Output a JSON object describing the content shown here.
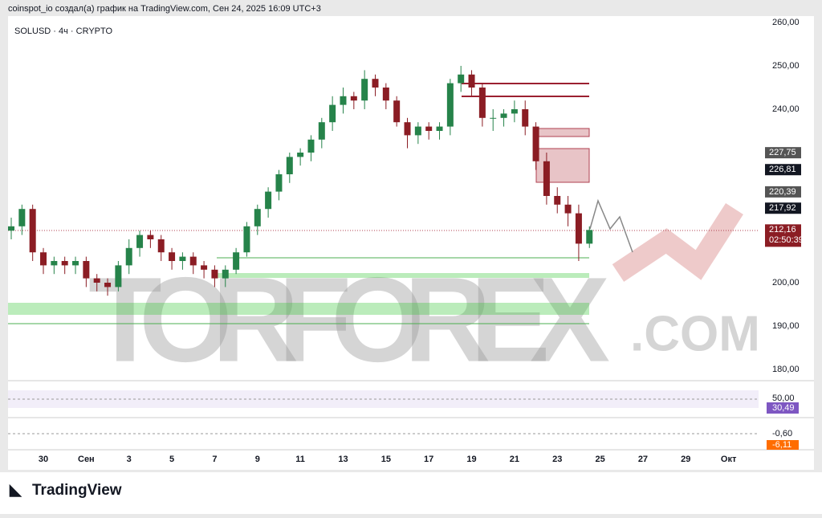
{
  "header": {
    "caption": "coinspot_io создал(а) график на TradingView.com, Сен 24, 2025 16:09 UTC+3",
    "symbol": "SOLUSD · 4ч · CRYPTO",
    "brand": "TradingView"
  },
  "watermark": {
    "main": "TORFOREX",
    "suffix": ".COM"
  },
  "chart_data": {
    "type": "candlestick",
    "open": [
      212,
      213,
      217,
      207,
      204,
      205,
      204,
      205,
      201,
      200,
      199,
      204,
      208,
      211,
      210,
      207,
      205,
      206,
      204,
      203,
      201,
      203,
      207,
      213,
      217,
      221,
      225,
      229,
      230,
      233,
      237,
      241,
      243,
      242,
      247,
      245,
      242,
      237,
      234,
      236,
      235,
      236,
      246,
      248,
      245,
      238,
      238,
      239,
      240,
      236,
      228,
      220,
      218,
      216,
      209
    ],
    "high": [
      215,
      218,
      218,
      208,
      206,
      206,
      206,
      206,
      202,
      201,
      205,
      210,
      212,
      212,
      211,
      208,
      207,
      207,
      205,
      204,
      204,
      208,
      214,
      218,
      222,
      226,
      230,
      231,
      234,
      238,
      243,
      245,
      244,
      249,
      248,
      246,
      243,
      238,
      237,
      237,
      237,
      247,
      250,
      249,
      246,
      240,
      240,
      242,
      242,
      237,
      230,
      222,
      220,
      218,
      213
    ],
    "low": [
      210,
      211,
      205,
      202,
      202,
      202,
      202,
      199,
      198,
      197,
      198,
      202,
      206,
      208,
      205,
      203,
      203,
      202,
      201,
      199,
      199,
      202,
      206,
      211,
      215,
      219,
      223,
      227,
      228,
      231,
      235,
      239,
      240,
      240,
      243,
      240,
      236,
      231,
      232,
      233,
      233,
      234,
      244,
      243,
      236,
      235,
      236,
      237,
      234,
      226,
      218,
      216,
      213,
      205,
      208
    ],
    "close": [
      213,
      217,
      207,
      204,
      205,
      204,
      205,
      201,
      200,
      199,
      204,
      208,
      211,
      210,
      207,
      205,
      206,
      204,
      203,
      201,
      203,
      207,
      213,
      217,
      221,
      225,
      229,
      230,
      233,
      237,
      241,
      243,
      242,
      247,
      245,
      242,
      237,
      234,
      236,
      235,
      236,
      246,
      248,
      245,
      238,
      238,
      239,
      240,
      236,
      228,
      220,
      218,
      216,
      209,
      212.16
    ],
    "up_color": "#26834a",
    "down_color": "#8b1d24",
    "xlim": [
      -0.3,
      69.8
    ],
    "xticks": [
      {
        "value": 3,
        "label": "30"
      },
      {
        "value": 7,
        "label": "Сен"
      },
      {
        "value": 11,
        "label": "3"
      },
      {
        "value": 15,
        "label": "5"
      },
      {
        "value": 19,
        "label": "7"
      },
      {
        "value": 23,
        "label": "9"
      },
      {
        "value": 27,
        "label": "11"
      },
      {
        "value": 31,
        "label": "13"
      },
      {
        "value": 35,
        "label": "15"
      },
      {
        "value": 39,
        "label": "17"
      },
      {
        "value": 43,
        "label": "19"
      },
      {
        "value": 47,
        "label": "21"
      },
      {
        "value": 51,
        "label": "23"
      },
      {
        "value": 55,
        "label": "25"
      },
      {
        "value": 59,
        "label": "27"
      },
      {
        "value": 63,
        "label": "29"
      },
      {
        "value": 67,
        "label": "Окт"
      }
    ],
    "ylim": [
      178.15,
      261.48
    ],
    "yticks": [
      {
        "value": 260,
        "label": "260,00"
      },
      {
        "value": 250,
        "label": "250,00"
      },
      {
        "value": 240,
        "label": "240,00"
      },
      {
        "value": 200,
        "label": "200,00"
      },
      {
        "value": 190,
        "label": "190,00"
      },
      {
        "value": 180,
        "label": "180,00"
      }
    ],
    "price_labels": [
      {
        "value": 227.75,
        "label": "227,75"
      },
      {
        "value": 226.81,
        "label": "226,81"
      },
      {
        "value": 220.39,
        "label": "220,39"
      },
      {
        "value": 217.92,
        "label": "217,92"
      },
      {
        "value": 212.16,
        "label": "212,16"
      }
    ],
    "countdown": "02:50:39",
    "indicators": {
      "rsi_level": "50,00",
      "rsi_value": "30,49",
      "macd_signal": "-0,60",
      "macd_value": "-6,11"
    }
  }
}
